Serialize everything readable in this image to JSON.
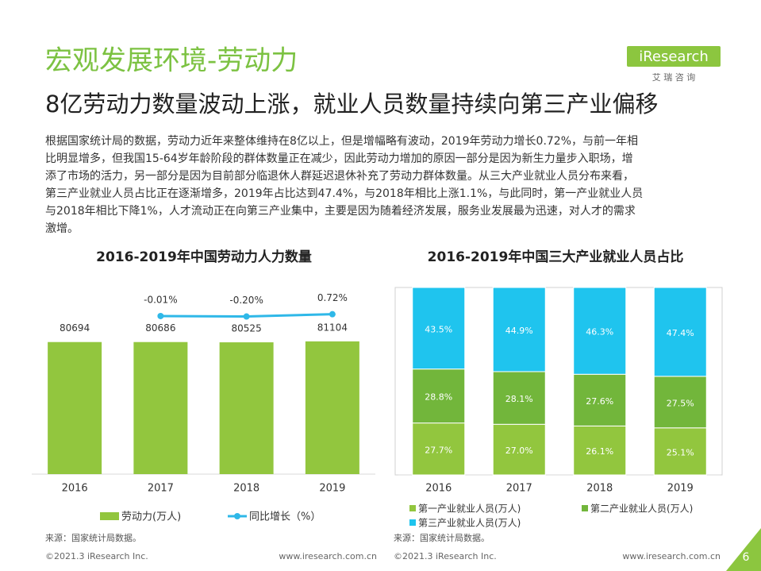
{
  "header": {
    "title": "宏观发展环境-劳动力",
    "subtitle": "8亿劳动力数量波动上涨，就业人员数量持续向第三产业偏移",
    "logo": "iResearch",
    "logo_sub": "艾 瑞 咨 询"
  },
  "body": {
    "lines": [
      "根据国家统计局的数据，劳动力近年来整体维持在8亿以上，但是增幅略有波动，2019年劳动力增长0.72%，与前一年相",
      "比明显增多，但我国15-64岁年龄阶段的群体数量正在减少，因此劳动力增加的原因一部分是因为新生力量步入职场，增",
      "添了市场的活力，另一部分是因为目前部分临退休人群延迟退休补充了劳动力群体数量。从三大产业就业人员分布来看，",
      "第三产业就业人员占比正在逐渐增多，2019年占比达到47.4%，与2018年相比上涨1.1%，与此同时，第一产业就业人员",
      "与2018年相比下降1%，人才流动正在向第三产业集中，主要是因为随着经济发展，服务业发展最为迅速，对人才的需求",
      "激增。"
    ]
  },
  "chart_data": [
    {
      "type": "bar_line",
      "title": "2016-2019年中国劳动力人力数量",
      "categories": [
        "2016",
        "2017",
        "2018",
        "2019"
      ],
      "ylim": [
        0,
        115000
      ],
      "y2lim": [
        -63,
        12
      ],
      "series": [
        {
          "name": "劳动力(万人)",
          "color": "#92c63e",
          "values": [
            80694,
            80686,
            80525,
            81104
          ]
        },
        {
          "name": "同比增长（%）",
          "color": "#2fb8e8",
          "axis": "y2",
          "values": [
            null,
            -0.01,
            -0.2,
            0.72
          ],
          "value_labels": [
            null,
            "-0.01%",
            "-0.20%",
            "0.72%"
          ]
        }
      ],
      "source": "来源：国家统计局数据。"
    },
    {
      "type": "stacked_bar",
      "title": "2016-2019年中国三大产业就业人员占比",
      "categories": [
        "2016",
        "2017",
        "2018",
        "2019"
      ],
      "ylim": [
        0,
        100
      ],
      "series": [
        {
          "name": "第一产业就业人员(万人)",
          "color": "#92c63e",
          "values": [
            27.7,
            27.0,
            26.1,
            25.1
          ],
          "value_labels": [
            "27.7%",
            "27.0%",
            "26.1%",
            "25.1%"
          ]
        },
        {
          "name": "第二产业就业人员(万人)",
          "color": "#72b63b",
          "values": [
            28.8,
            28.1,
            27.6,
            27.5
          ],
          "value_labels": [
            "28.8%",
            "28.1%",
            "27.6%",
            "27.5%"
          ]
        },
        {
          "name": "第三产业就业人员(万人)",
          "color": "#1fc4ee",
          "values": [
            43.5,
            44.9,
            46.3,
            47.4
          ],
          "value_labels": [
            "43.5%",
            "44.9%",
            "46.3%",
            "47.4%"
          ]
        }
      ],
      "source": "来源：国家统计局数据。"
    }
  ],
  "footer": {
    "copyright_left": "©2021.3 iResearch Inc.",
    "url_left": "www.iresearch.com.cn",
    "copyright_right": "©2021.3 iResearch Inc.",
    "url_right": "www.iresearch.com.cn",
    "page": "6"
  }
}
